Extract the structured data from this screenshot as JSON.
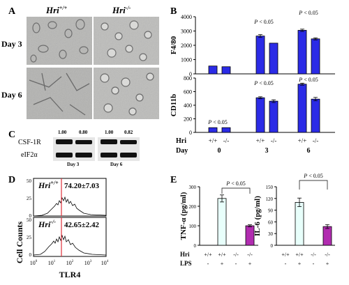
{
  "panels": {
    "A": {
      "label": "A",
      "col_headers": [
        "Hri+/+",
        "Hri-/-"
      ],
      "col_header_parts": [
        [
          "Hri",
          "+/+"
        ],
        [
          "Hri",
          "-/-"
        ]
      ],
      "row_labels": [
        "Day 3",
        "Day 6"
      ]
    },
    "C": {
      "label": "C",
      "bands": [
        "CSF-1R",
        "eIF2α"
      ],
      "ratios": [
        "1.00",
        "0.80",
        "1.00",
        "0.82"
      ],
      "days": [
        "Day 3",
        "Day 6"
      ]
    },
    "D": {
      "label": "D",
      "ylabel": "Cell Counts",
      "xlabel": "TLR4",
      "top": {
        "genotype_base": "Hri",
        "genotype_sup": "+/+",
        "value": "74.20±7.03"
      },
      "bottom": {
        "genotype_base": "Hri",
        "genotype_sup": "-/-",
        "value": "42.65±2.42"
      },
      "yticks": [
        "0",
        "25",
        "50"
      ],
      "xticks_base": [
        "10",
        "10",
        "10",
        "10",
        "10"
      ],
      "xticks_exp": [
        "0",
        "1",
        "2",
        "3",
        "4"
      ]
    },
    "B": {
      "label": "B"
    },
    "E": {
      "label": "E"
    }
  },
  "chart_data": [
    {
      "id": "B-top",
      "type": "bar",
      "ylabel": "F4/80",
      "ylim": [
        0,
        4000
      ],
      "yticks": [
        "0",
        "1000",
        "2000",
        "3000",
        "4000"
      ],
      "x": [
        0,
        0,
        3,
        3,
        6,
        6
      ],
      "genotype": [
        "+/+",
        "-/-",
        "+/+",
        "-/-",
        "+/+",
        "-/-"
      ],
      "values": [
        550,
        500,
        2650,
        2150,
        3050,
        2450
      ],
      "errors": [
        0,
        0,
        100,
        0,
        80,
        70
      ],
      "annotations": [
        "P < 0.05",
        "P < 0.05"
      ],
      "color": "#2b2be6"
    },
    {
      "id": "B-bottom",
      "type": "bar",
      "ylabel": "CD11b",
      "ylim": [
        0,
        800
      ],
      "yticks": [
        "0",
        "200",
        "400",
        "600",
        "800"
      ],
      "x": [
        0,
        0,
        3,
        3,
        6,
        6
      ],
      "genotype": [
        "+/+",
        "-/-",
        "+/+",
        "-/-",
        "+/+",
        "-/-"
      ],
      "values": [
        70,
        70,
        510,
        460,
        710,
        490
      ],
      "errors": [
        0,
        0,
        15,
        20,
        15,
        25
      ],
      "annotations": [
        "P < 0.05",
        "P < 0.05",
        "P < 0.05"
      ],
      "row_hri_label": "Hri",
      "row_day_label": "Day",
      "genotype_row": [
        "+/+",
        "-/-",
        "+/+",
        "-/-",
        "+/+",
        "-/-"
      ],
      "day_row": [
        "0",
        "3",
        "6"
      ],
      "color": "#2b2be6"
    },
    {
      "id": "E-left",
      "type": "bar",
      "ylabel": "TNF-α (pg/ml)",
      "ylim": [
        0,
        300
      ],
      "yticks": [
        "0",
        "100",
        "200",
        "300"
      ],
      "hri": [
        "+/+",
        "+/+",
        "-/-",
        "-/-"
      ],
      "lps": [
        "-",
        "+",
        "-",
        "+"
      ],
      "values": [
        0,
        240,
        0,
        100
      ],
      "errors": [
        0,
        18,
        0,
        5
      ],
      "colors": [
        "#e8fffb",
        "#e8fffb",
        "#b12cb0",
        "#b12cb0"
      ],
      "annotations": [
        "P < 0.05"
      ],
      "row_hri_label": "Hri",
      "row_lps_label": "LPS"
    },
    {
      "id": "E-right",
      "type": "bar",
      "ylabel": "IL-6 (pg/ml)",
      "ylim": [
        0,
        150
      ],
      "yticks": [
        "0",
        "30",
        "60",
        "90",
        "120",
        "150"
      ],
      "hri": [
        "+/+",
        "+/+",
        "-/-",
        "-/-"
      ],
      "lps": [
        "-",
        "+",
        "-",
        "+"
      ],
      "values": [
        0,
        110,
        0,
        48
      ],
      "errors": [
        0,
        11,
        0,
        5
      ],
      "colors": [
        "#e8fffb",
        "#e8fffb",
        "#b12cb0",
        "#b12cb0"
      ],
      "annotations": [
        "P < 0.05"
      ]
    }
  ]
}
